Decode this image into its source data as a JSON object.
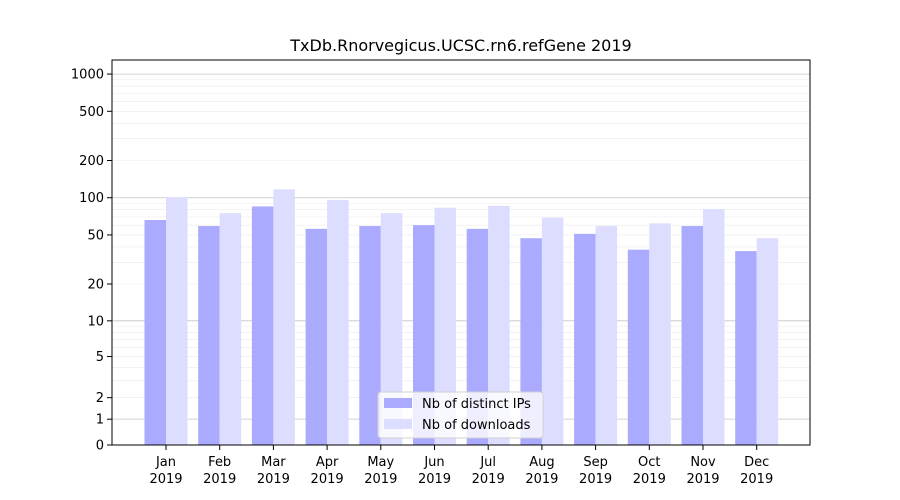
{
  "chart_data": {
    "type": "bar",
    "title": "TxDb.Rnorvegicus.UCSC.rn6.refGene 2019",
    "xlabel": "",
    "ylabel": "",
    "y_scale": "symlog",
    "ylim": [
      0,
      1300
    ],
    "y_ticks": [
      0,
      1,
      2,
      5,
      10,
      20,
      50,
      100,
      200,
      500,
      1000
    ],
    "y_tick_labels": [
      "0",
      "1",
      "2",
      "5",
      "10",
      "20",
      "50",
      "100",
      "200",
      "500",
      "1000"
    ],
    "grid": true,
    "legend_position": "lower center",
    "categories": [
      {
        "month": "Jan",
        "year": "2019"
      },
      {
        "month": "Feb",
        "year": "2019"
      },
      {
        "month": "Mar",
        "year": "2019"
      },
      {
        "month": "Apr",
        "year": "2019"
      },
      {
        "month": "May",
        "year": "2019"
      },
      {
        "month": "Jun",
        "year": "2019"
      },
      {
        "month": "Jul",
        "year": "2019"
      },
      {
        "month": "Aug",
        "year": "2019"
      },
      {
        "month": "Sep",
        "year": "2019"
      },
      {
        "month": "Oct",
        "year": "2019"
      },
      {
        "month": "Nov",
        "year": "2019"
      },
      {
        "month": "Dec",
        "year": "2019"
      }
    ],
    "series": [
      {
        "name": "Nb of distinct IPs",
        "color": "#aaaaff",
        "values": [
          66,
          59,
          85,
          56,
          59,
          60,
          56,
          47,
          51,
          38,
          59,
          37
        ]
      },
      {
        "name": "Nb of downloads",
        "color": "#ddddff",
        "values": [
          101,
          75,
          117,
          96,
          75,
          83,
          86,
          69,
          59,
          62,
          81,
          47
        ]
      }
    ]
  }
}
